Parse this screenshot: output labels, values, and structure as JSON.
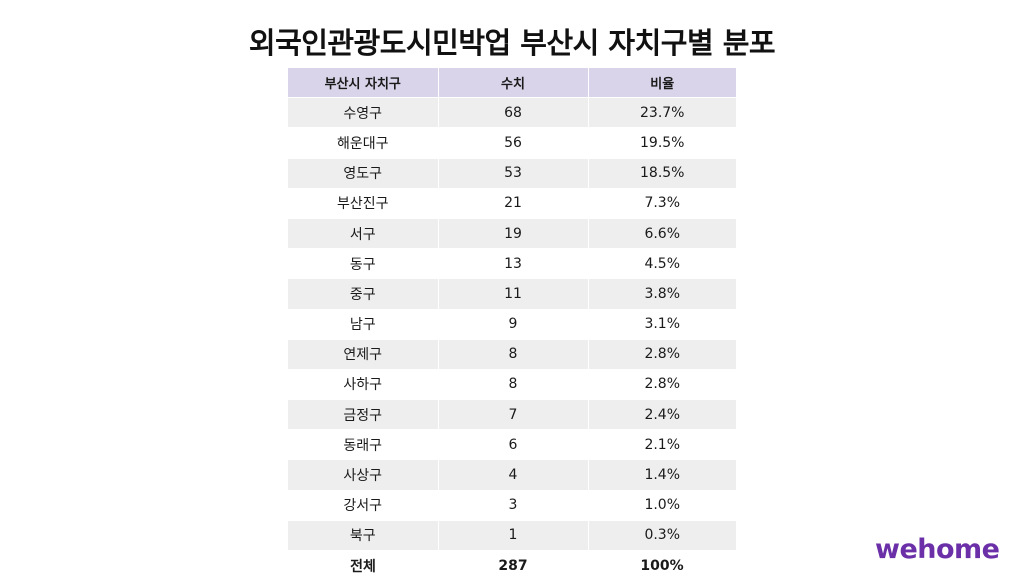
{
  "title": "외국인관광도시민박업 부산시 자치구별 분포",
  "logo": "wehome",
  "chart_data": {
    "type": "table",
    "columns": [
      "부산시 자치구",
      "수치",
      "비율"
    ],
    "rows": [
      {
        "district": "수영구",
        "count": "68",
        "ratio": "23.7%"
      },
      {
        "district": "해운대구",
        "count": "56",
        "ratio": "19.5%"
      },
      {
        "district": "영도구",
        "count": "53",
        "ratio": "18.5%"
      },
      {
        "district": "부산진구",
        "count": "21",
        "ratio": "7.3%"
      },
      {
        "district": "서구",
        "count": "19",
        "ratio": "6.6%"
      },
      {
        "district": "동구",
        "count": "13",
        "ratio": "4.5%"
      },
      {
        "district": "중구",
        "count": "11",
        "ratio": "3.8%"
      },
      {
        "district": "남구",
        "count": "9",
        "ratio": "3.1%"
      },
      {
        "district": "연제구",
        "count": "8",
        "ratio": "2.8%"
      },
      {
        "district": "사하구",
        "count": "8",
        "ratio": "2.8%"
      },
      {
        "district": "금정구",
        "count": "7",
        "ratio": "2.4%"
      },
      {
        "district": "동래구",
        "count": "6",
        "ratio": "2.1%"
      },
      {
        "district": "사상구",
        "count": "4",
        "ratio": "1.4%"
      },
      {
        "district": "강서구",
        "count": "3",
        "ratio": "1.0%"
      },
      {
        "district": "북구",
        "count": "1",
        "ratio": "0.3%"
      }
    ],
    "total": {
      "label": "전체",
      "count": "287",
      "ratio": "100%"
    }
  },
  "colors": {
    "header_bg": "#d9d4e9",
    "stripe_bg": "#eeeeee",
    "logo": "#6b2fa8"
  }
}
